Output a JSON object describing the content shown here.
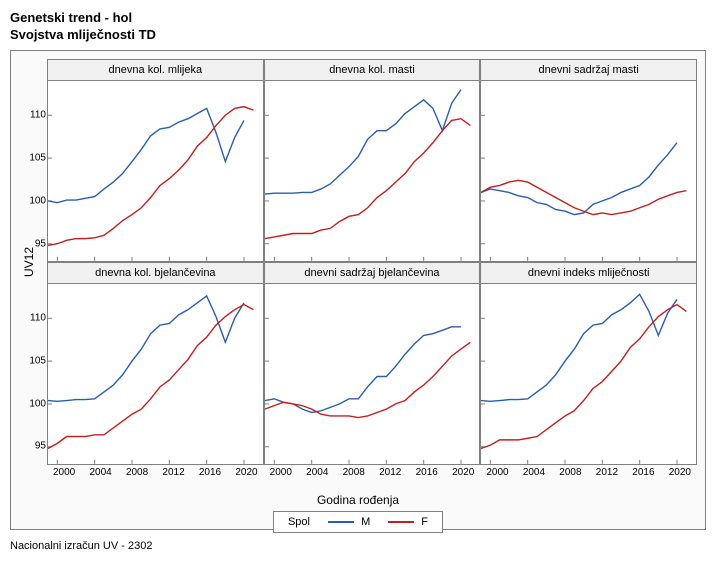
{
  "title1": "Genetski trend - hol",
  "title2": "Svojstva mliječnosti TD",
  "y_label": "UV12",
  "x_label": "Godina rođenja",
  "footer": "Nacionalni izračun UV - 2302",
  "legend": {
    "title": "Spol",
    "m": "M",
    "f": "F"
  },
  "colors": {
    "m": "#2a5db0",
    "f": "#c02020",
    "panel_border": "#808080",
    "bg": "#ffffff",
    "tick": "#808080"
  },
  "axes": {
    "xmin": 1999,
    "xmax": 2022,
    "ymin": 93,
    "ymax": 114,
    "xticks": [
      2000,
      2004,
      2008,
      2012,
      2016,
      2020
    ],
    "yticks": [
      95,
      100,
      105,
      110
    ]
  },
  "panels": [
    {
      "title": "dnevna kol. mlijeka",
      "m": [
        [
          1999,
          100.0
        ],
        [
          2000,
          99.8
        ],
        [
          2001,
          100.1
        ],
        [
          2002,
          100.1
        ],
        [
          2003,
          100.3
        ],
        [
          2004,
          100.5
        ],
        [
          2005,
          101.4
        ],
        [
          2006,
          102.2
        ],
        [
          2007,
          103.2
        ],
        [
          2008,
          104.6
        ],
        [
          2009,
          106.0
        ],
        [
          2010,
          107.6
        ],
        [
          2011,
          108.4
        ],
        [
          2012,
          108.6
        ],
        [
          2013,
          109.2
        ],
        [
          2014,
          109.6
        ],
        [
          2015,
          110.2
        ],
        [
          2016,
          110.8
        ],
        [
          2017,
          108.0
        ],
        [
          2018,
          104.6
        ],
        [
          2019,
          107.4
        ],
        [
          2020,
          109.4
        ]
      ],
      "f": [
        [
          1999,
          94.8
        ],
        [
          2000,
          95.0
        ],
        [
          2001,
          95.4
        ],
        [
          2002,
          95.6
        ],
        [
          2003,
          95.6
        ],
        [
          2004,
          95.7
        ],
        [
          2005,
          96.0
        ],
        [
          2006,
          96.8
        ],
        [
          2007,
          97.7
        ],
        [
          2008,
          98.4
        ],
        [
          2009,
          99.2
        ],
        [
          2010,
          100.4
        ],
        [
          2011,
          101.8
        ],
        [
          2012,
          102.6
        ],
        [
          2013,
          103.6
        ],
        [
          2014,
          104.8
        ],
        [
          2015,
          106.4
        ],
        [
          2016,
          107.4
        ],
        [
          2017,
          108.8
        ],
        [
          2018,
          110.0
        ],
        [
          2019,
          110.8
        ],
        [
          2020,
          111.0
        ],
        [
          2021,
          110.6
        ]
      ]
    },
    {
      "title": "dnevna kol. masti",
      "m": [
        [
          1999,
          100.8
        ],
        [
          2000,
          100.9
        ],
        [
          2001,
          100.9
        ],
        [
          2002,
          100.9
        ],
        [
          2003,
          101.0
        ],
        [
          2004,
          101.0
        ],
        [
          2005,
          101.4
        ],
        [
          2006,
          102.0
        ],
        [
          2007,
          103.0
        ],
        [
          2008,
          104.0
        ],
        [
          2009,
          105.2
        ],
        [
          2010,
          107.2
        ],
        [
          2011,
          108.2
        ],
        [
          2012,
          108.2
        ],
        [
          2013,
          109.0
        ],
        [
          2014,
          110.2
        ],
        [
          2015,
          111.0
        ],
        [
          2016,
          111.8
        ],
        [
          2017,
          110.8
        ],
        [
          2018,
          108.2
        ],
        [
          2019,
          111.4
        ],
        [
          2020,
          113.0
        ]
      ],
      "f": [
        [
          1999,
          95.6
        ],
        [
          2000,
          95.8
        ],
        [
          2001,
          96.0
        ],
        [
          2002,
          96.2
        ],
        [
          2003,
          96.2
        ],
        [
          2004,
          96.2
        ],
        [
          2005,
          96.6
        ],
        [
          2006,
          96.8
        ],
        [
          2007,
          97.6
        ],
        [
          2008,
          98.2
        ],
        [
          2009,
          98.4
        ],
        [
          2010,
          99.2
        ],
        [
          2011,
          100.4
        ],
        [
          2012,
          101.2
        ],
        [
          2013,
          102.2
        ],
        [
          2014,
          103.2
        ],
        [
          2015,
          104.6
        ],
        [
          2016,
          105.6
        ],
        [
          2017,
          106.8
        ],
        [
          2018,
          108.2
        ],
        [
          2019,
          109.4
        ],
        [
          2020,
          109.6
        ],
        [
          2021,
          108.8
        ]
      ]
    },
    {
      "title": "dnevni sadržaj masti",
      "m": [
        [
          1999,
          101.0
        ],
        [
          2000,
          101.4
        ],
        [
          2001,
          101.2
        ],
        [
          2002,
          101.0
        ],
        [
          2003,
          100.6
        ],
        [
          2004,
          100.4
        ],
        [
          2005,
          99.8
        ],
        [
          2006,
          99.6
        ],
        [
          2007,
          99.0
        ],
        [
          2008,
          98.8
        ],
        [
          2009,
          98.4
        ],
        [
          2010,
          98.6
        ],
        [
          2011,
          99.6
        ],
        [
          2012,
          100.0
        ],
        [
          2013,
          100.4
        ],
        [
          2014,
          101.0
        ],
        [
          2015,
          101.4
        ],
        [
          2016,
          101.8
        ],
        [
          2017,
          102.8
        ],
        [
          2018,
          104.2
        ],
        [
          2019,
          105.4
        ],
        [
          2020,
          106.8
        ]
      ],
      "f": [
        [
          1999,
          101.0
        ],
        [
          2000,
          101.6
        ],
        [
          2001,
          101.8
        ],
        [
          2002,
          102.2
        ],
        [
          2003,
          102.4
        ],
        [
          2004,
          102.2
        ],
        [
          2005,
          101.6
        ],
        [
          2006,
          101.0
        ],
        [
          2007,
          100.4
        ],
        [
          2008,
          99.8
        ],
        [
          2009,
          99.2
        ],
        [
          2010,
          98.8
        ],
        [
          2011,
          98.4
        ],
        [
          2012,
          98.6
        ],
        [
          2013,
          98.4
        ],
        [
          2014,
          98.6
        ],
        [
          2015,
          98.8
        ],
        [
          2016,
          99.2
        ],
        [
          2017,
          99.6
        ],
        [
          2018,
          100.2
        ],
        [
          2019,
          100.6
        ],
        [
          2020,
          101.0
        ],
        [
          2021,
          101.2
        ]
      ]
    },
    {
      "title": "dnevna kol. bjelančevina",
      "m": [
        [
          1999,
          100.4
        ],
        [
          2000,
          100.3
        ],
        [
          2001,
          100.4
        ],
        [
          2002,
          100.5
        ],
        [
          2003,
          100.5
        ],
        [
          2004,
          100.6
        ],
        [
          2005,
          101.4
        ],
        [
          2006,
          102.2
        ],
        [
          2007,
          103.4
        ],
        [
          2008,
          105.0
        ],
        [
          2009,
          106.4
        ],
        [
          2010,
          108.2
        ],
        [
          2011,
          109.2
        ],
        [
          2012,
          109.4
        ],
        [
          2013,
          110.4
        ],
        [
          2014,
          111.0
        ],
        [
          2015,
          111.8
        ],
        [
          2016,
          112.6
        ],
        [
          2017,
          110.2
        ],
        [
          2018,
          107.2
        ],
        [
          2019,
          110.0
        ],
        [
          2020,
          111.8
        ]
      ],
      "f": [
        [
          1999,
          94.8
        ],
        [
          2000,
          95.4
        ],
        [
          2001,
          96.2
        ],
        [
          2002,
          96.2
        ],
        [
          2003,
          96.2
        ],
        [
          2004,
          96.4
        ],
        [
          2005,
          96.4
        ],
        [
          2006,
          97.2
        ],
        [
          2007,
          98.0
        ],
        [
          2008,
          98.8
        ],
        [
          2009,
          99.4
        ],
        [
          2010,
          100.6
        ],
        [
          2011,
          102.0
        ],
        [
          2012,
          102.8
        ],
        [
          2013,
          104.0
        ],
        [
          2014,
          105.2
        ],
        [
          2015,
          106.8
        ],
        [
          2016,
          107.8
        ],
        [
          2017,
          109.2
        ],
        [
          2018,
          110.2
        ],
        [
          2019,
          111.0
        ],
        [
          2020,
          111.6
        ],
        [
          2021,
          111.0
        ]
      ]
    },
    {
      "title": "dnevni sadržaj bjelančevina",
      "m": [
        [
          1999,
          100.4
        ],
        [
          2000,
          100.6
        ],
        [
          2001,
          100.2
        ],
        [
          2002,
          100.0
        ],
        [
          2003,
          99.4
        ],
        [
          2004,
          99.0
        ],
        [
          2005,
          99.2
        ],
        [
          2006,
          99.6
        ],
        [
          2007,
          100.0
        ],
        [
          2008,
          100.6
        ],
        [
          2009,
          100.6
        ],
        [
          2010,
          102.0
        ],
        [
          2011,
          103.2
        ],
        [
          2012,
          103.2
        ],
        [
          2013,
          104.4
        ],
        [
          2014,
          105.8
        ],
        [
          2015,
          107.0
        ],
        [
          2016,
          108.0
        ],
        [
          2017,
          108.2
        ],
        [
          2018,
          108.6
        ],
        [
          2019,
          109.0
        ],
        [
          2020,
          109.0
        ]
      ],
      "f": [
        [
          1999,
          99.4
        ],
        [
          2000,
          99.8
        ],
        [
          2001,
          100.2
        ],
        [
          2002,
          100.0
        ],
        [
          2003,
          99.8
        ],
        [
          2004,
          99.4
        ],
        [
          2005,
          98.8
        ],
        [
          2006,
          98.6
        ],
        [
          2007,
          98.6
        ],
        [
          2008,
          98.6
        ],
        [
          2009,
          98.4
        ],
        [
          2010,
          98.6
        ],
        [
          2011,
          99.0
        ],
        [
          2012,
          99.4
        ],
        [
          2013,
          100.0
        ],
        [
          2014,
          100.4
        ],
        [
          2015,
          101.4
        ],
        [
          2016,
          102.2
        ],
        [
          2017,
          103.2
        ],
        [
          2018,
          104.4
        ],
        [
          2019,
          105.6
        ],
        [
          2020,
          106.4
        ],
        [
          2021,
          107.2
        ]
      ]
    },
    {
      "title": "dnevni indeks mliječnosti",
      "m": [
        [
          1999,
          100.4
        ],
        [
          2000,
          100.3
        ],
        [
          2001,
          100.4
        ],
        [
          2002,
          100.5
        ],
        [
          2003,
          100.5
        ],
        [
          2004,
          100.6
        ],
        [
          2005,
          101.4
        ],
        [
          2006,
          102.2
        ],
        [
          2007,
          103.4
        ],
        [
          2008,
          105.0
        ],
        [
          2009,
          106.4
        ],
        [
          2010,
          108.2
        ],
        [
          2011,
          109.2
        ],
        [
          2012,
          109.4
        ],
        [
          2013,
          110.4
        ],
        [
          2014,
          111.0
        ],
        [
          2015,
          111.8
        ],
        [
          2016,
          112.8
        ],
        [
          2017,
          110.8
        ],
        [
          2018,
          108.0
        ],
        [
          2019,
          110.6
        ],
        [
          2020,
          112.2
        ]
      ],
      "f": [
        [
          1999,
          94.8
        ],
        [
          2000,
          95.2
        ],
        [
          2001,
          95.8
        ],
        [
          2002,
          95.8
        ],
        [
          2003,
          95.8
        ],
        [
          2004,
          96.0
        ],
        [
          2005,
          96.2
        ],
        [
          2006,
          97.0
        ],
        [
          2007,
          97.8
        ],
        [
          2008,
          98.6
        ],
        [
          2009,
          99.2
        ],
        [
          2010,
          100.4
        ],
        [
          2011,
          101.8
        ],
        [
          2012,
          102.6
        ],
        [
          2013,
          103.8
        ],
        [
          2014,
          105.0
        ],
        [
          2015,
          106.6
        ],
        [
          2016,
          107.6
        ],
        [
          2017,
          109.0
        ],
        [
          2018,
          110.2
        ],
        [
          2019,
          111.0
        ],
        [
          2020,
          111.6
        ],
        [
          2021,
          110.8
        ]
      ]
    }
  ]
}
